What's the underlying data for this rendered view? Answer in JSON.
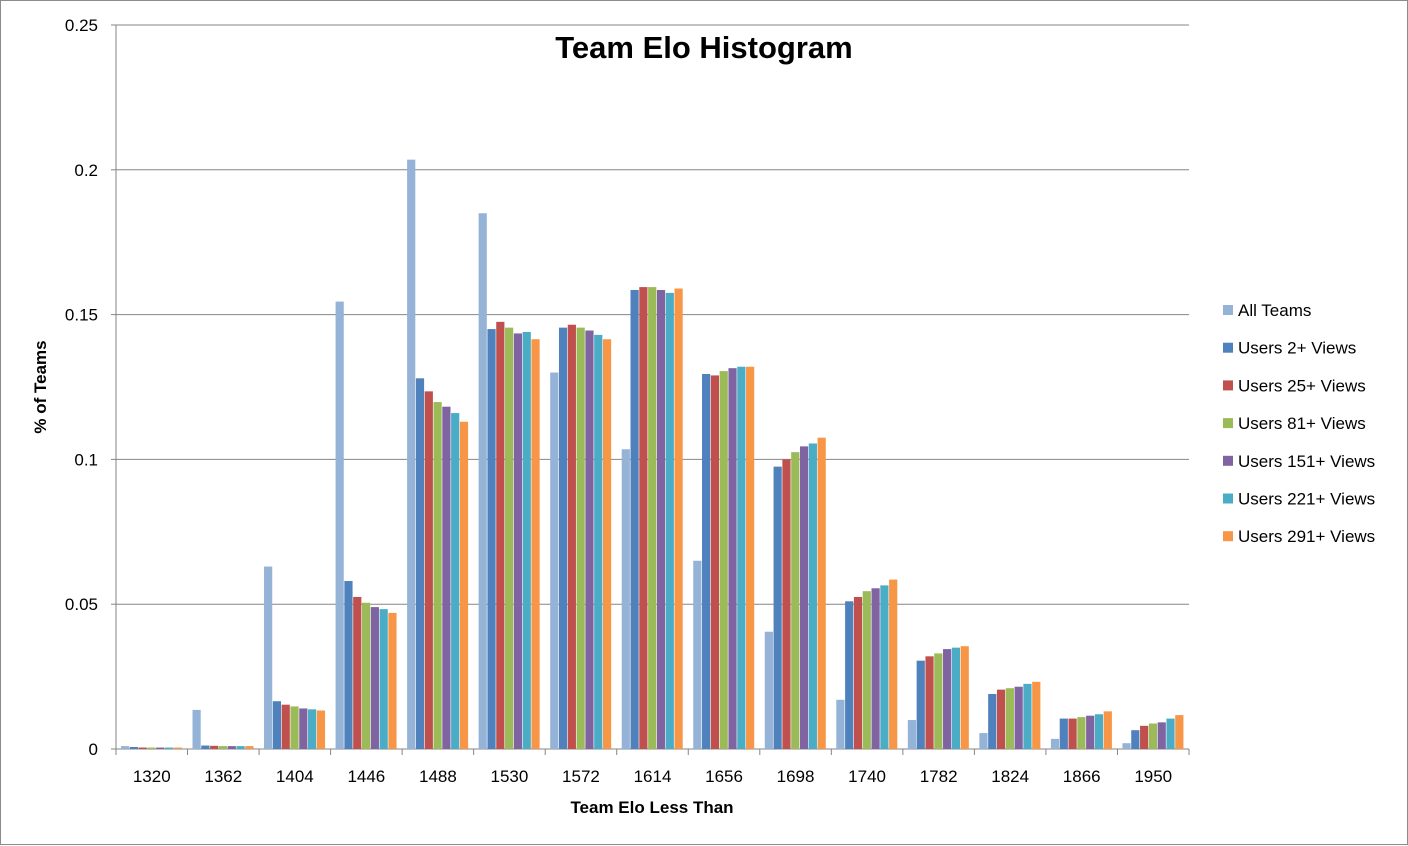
{
  "chart_data": {
    "type": "bar",
    "title": "Team Elo Histogram",
    "xlabel": "Team Elo Less Than",
    "ylabel": "% of Teams",
    "ylim": [
      0,
      0.25
    ],
    "yticks": [
      "0",
      "0.05",
      "0.1",
      "0.15",
      "0.2",
      "0.25"
    ],
    "grid": true,
    "legend_position": "right",
    "categories": [
      "1320",
      "1362",
      "1404",
      "1446",
      "1488",
      "1530",
      "1572",
      "1614",
      "1656",
      "1698",
      "1740",
      "1782",
      "1824",
      "1866",
      "1950"
    ],
    "series": [
      {
        "name": "All Teams",
        "color": "#95B3D7",
        "values": [
          0.001,
          0.0135,
          0.063,
          0.1545,
          0.2035,
          0.185,
          0.13,
          0.1035,
          0.065,
          0.0405,
          0.017,
          0.01,
          0.0055,
          0.0035,
          0.002
        ]
      },
      {
        "name": "Users 2+ Views",
        "color": "#4F81BD",
        "values": [
          0.0007,
          0.0012,
          0.0165,
          0.058,
          0.128,
          0.145,
          0.1455,
          0.1585,
          0.1295,
          0.0975,
          0.051,
          0.0305,
          0.019,
          0.0105,
          0.0065
        ]
      },
      {
        "name": "Users 25+ Views",
        "color": "#C0504D",
        "values": [
          0.0005,
          0.0011,
          0.0153,
          0.0525,
          0.1235,
          0.1475,
          0.1465,
          0.1595,
          0.129,
          0.1,
          0.0525,
          0.032,
          0.0205,
          0.0105,
          0.008
        ]
      },
      {
        "name": "Users 81+ Views",
        "color": "#9BBB59",
        "values": [
          0.0005,
          0.001,
          0.0147,
          0.0505,
          0.1198,
          0.1455,
          0.1455,
          0.1595,
          0.1305,
          0.1025,
          0.0545,
          0.033,
          0.021,
          0.011,
          0.0088
        ]
      },
      {
        "name": "Users 151+ Views",
        "color": "#8064A2",
        "values": [
          0.0005,
          0.001,
          0.014,
          0.049,
          0.1182,
          0.1435,
          0.1445,
          0.1585,
          0.1315,
          0.1045,
          0.0555,
          0.0345,
          0.0215,
          0.0115,
          0.0092
        ]
      },
      {
        "name": "Users 221+ Views",
        "color": "#4BACC6",
        "values": [
          0.0005,
          0.001,
          0.0137,
          0.0483,
          0.116,
          0.144,
          0.143,
          0.1575,
          0.132,
          0.1055,
          0.0565,
          0.035,
          0.0225,
          0.012,
          0.0105
        ]
      },
      {
        "name": "Users 291+ Views",
        "color": "#F79646",
        "values": [
          0.0005,
          0.001,
          0.0133,
          0.047,
          0.113,
          0.1415,
          0.1415,
          0.159,
          0.132,
          0.1075,
          0.0585,
          0.0355,
          0.0232,
          0.013,
          0.0117
        ]
      }
    ]
  }
}
